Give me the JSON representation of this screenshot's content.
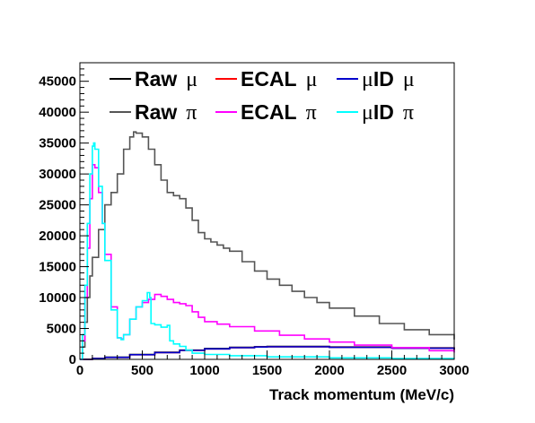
{
  "chart_data": {
    "type": "line",
    "title": "",
    "xlabel": "Track momentum (MeV/c)",
    "ylabel": "",
    "xlim": [
      0,
      3000
    ],
    "ylim": [
      0,
      48000
    ],
    "xticks": [
      0,
      500,
      1000,
      1500,
      2000,
      2500,
      3000
    ],
    "yticks": [
      0,
      5000,
      10000,
      15000,
      20000,
      25000,
      30000,
      35000,
      40000,
      45000
    ],
    "grid": false,
    "legend_placement": "top",
    "legend_columns": 3,
    "series": [
      {
        "name": "Raw",
        "particle": "μ",
        "color": "#000000",
        "x": [
          0,
          100,
          200,
          400,
          600,
          800,
          1000,
          1200,
          1400,
          1500,
          1600,
          2000,
          2500,
          3000
        ],
        "values": [
          0,
          150,
          350,
          800,
          1150,
          1500,
          1750,
          1950,
          2050,
          2100,
          2100,
          2000,
          1850,
          1600
        ]
      },
      {
        "name": "ECAL",
        "particle": "μ",
        "color": "#ff0000",
        "x": [
          0,
          100,
          200,
          400,
          600,
          800,
          1000,
          1200,
          1400,
          1500,
          1600,
          2000,
          2500,
          3000
        ],
        "values": [
          0,
          130,
          320,
          750,
          1100,
          1450,
          1700,
          1900,
          2000,
          2050,
          2050,
          1950,
          1800,
          1550
        ]
      },
      {
        "name": "μID",
        "particle": "μ",
        "color": "#0000cc",
        "x": [
          0,
          100,
          200,
          400,
          600,
          800,
          1000,
          1200,
          1400,
          1500,
          1600,
          2000,
          2500,
          3000
        ],
        "values": [
          0,
          130,
          320,
          750,
          1100,
          1450,
          1700,
          1900,
          2000,
          2050,
          2050,
          1950,
          1800,
          1550
        ]
      },
      {
        "name": "Raw",
        "particle": "π",
        "color": "#555555",
        "x": [
          0,
          20,
          40,
          60,
          80,
          100,
          150,
          200,
          250,
          300,
          350,
          400,
          430,
          450,
          500,
          550,
          600,
          650,
          700,
          750,
          800,
          850,
          900,
          950,
          1000,
          1050,
          1100,
          1150,
          1200,
          1300,
          1400,
          1500,
          1600,
          1700,
          1800,
          1900,
          2000,
          2200,
          2400,
          2600,
          2800,
          3000
        ],
        "values": [
          0,
          2000,
          6000,
          10000,
          13500,
          16500,
          21000,
          25000,
          27000,
          30000,
          34000,
          36000,
          36800,
          36600,
          36000,
          34000,
          31500,
          29000,
          27000,
          26500,
          26000,
          24500,
          22500,
          20500,
          19500,
          19000,
          18500,
          18000,
          17500,
          15800,
          14300,
          13000,
          12000,
          11000,
          10000,
          9200,
          8300,
          7000,
          5800,
          4800,
          4000,
          3200
        ]
      },
      {
        "name": "ECAL",
        "particle": "π",
        "color": "#ff00ff",
        "x": [
          0,
          20,
          40,
          60,
          80,
          100,
          120,
          150,
          180,
          200,
          250,
          300,
          330,
          350,
          400,
          450,
          500,
          550,
          600,
          650,
          700,
          750,
          800,
          850,
          900,
          950,
          1000,
          1100,
          1200,
          1400,
          1600,
          1800,
          2000,
          2200,
          2500,
          2800,
          3000
        ],
        "values": [
          0,
          3000,
          10000,
          18000,
          26000,
          31500,
          31000,
          27000,
          22000,
          17000,
          8500,
          3500,
          3300,
          4000,
          6500,
          8500,
          9200,
          9700,
          10500,
          10200,
          9700,
          9200,
          9000,
          8700,
          7700,
          6800,
          6100,
          5700,
          5300,
          4600,
          3900,
          3300,
          2800,
          2300,
          1900,
          1400,
          1100
        ]
      },
      {
        "name": "μID",
        "particle": "π",
        "color": "#00ffff",
        "x": [
          0,
          20,
          40,
          60,
          80,
          100,
          110,
          120,
          150,
          180,
          200,
          250,
          300,
          330,
          350,
          400,
          450,
          500,
          540,
          560,
          570,
          600,
          650,
          700,
          720,
          750,
          800,
          850,
          900,
          1000,
          1200,
          1500,
          2000,
          2500,
          3000
        ],
        "values": [
          0,
          4000,
          12000,
          22000,
          30000,
          34500,
          35000,
          34000,
          28000,
          22000,
          16000,
          8000,
          3500,
          3200,
          4000,
          6500,
          8500,
          9500,
          10800,
          10000,
          5800,
          5600,
          5200,
          5500,
          3000,
          2500,
          2100,
          1500,
          1000,
          800,
          600,
          400,
          250,
          150,
          100
        ]
      }
    ]
  }
}
